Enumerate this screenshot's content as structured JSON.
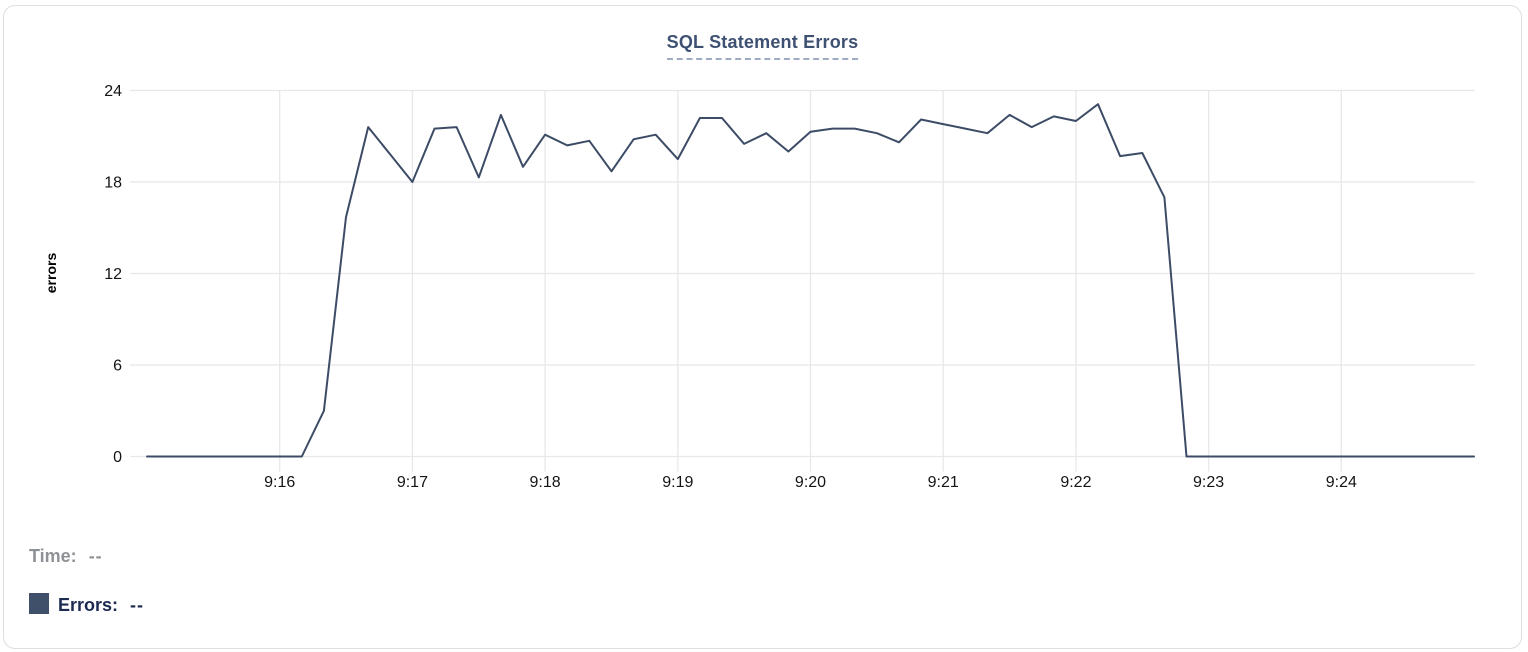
{
  "card": {
    "title": "SQL Statement Errors"
  },
  "chart_data": {
    "type": "line",
    "title": "SQL Statement Errors",
    "xlabel": "",
    "ylabel": "errors",
    "ylim": [
      0,
      24
    ],
    "y_ticks": [
      0,
      6,
      12,
      18,
      24
    ],
    "x_ticks": [
      "9:16",
      "9:17",
      "9:18",
      "9:19",
      "9:20",
      "9:21",
      "9:22",
      "9:23",
      "9:24"
    ],
    "x_start": "9:15:00",
    "x_end": "9:25:00",
    "interval_seconds": 10,
    "grid": true,
    "legend_position": "bottom-left",
    "series": [
      {
        "name": "Errors",
        "color": "#3d4c66",
        "points": [
          [
            "9:15:00",
            0
          ],
          [
            "9:15:10",
            0
          ],
          [
            "9:15:20",
            0
          ],
          [
            "9:15:30",
            0
          ],
          [
            "9:15:40",
            0
          ],
          [
            "9:15:50",
            0
          ],
          [
            "9:16:00",
            0
          ],
          [
            "9:16:10",
            0
          ],
          [
            "9:16:20",
            3
          ],
          [
            "9:16:30",
            15.7
          ],
          [
            "9:16:40",
            21.6
          ],
          [
            "9:16:50",
            19.8
          ],
          [
            "9:17:00",
            18
          ],
          [
            "9:17:10",
            21.5
          ],
          [
            "9:17:20",
            21.6
          ],
          [
            "9:17:30",
            18.3
          ],
          [
            "9:17:40",
            22.4
          ],
          [
            "9:17:50",
            19
          ],
          [
            "9:18:00",
            21.1
          ],
          [
            "9:18:10",
            20.4
          ],
          [
            "9:18:20",
            20.7
          ],
          [
            "9:18:30",
            18.7
          ],
          [
            "9:18:40",
            20.8
          ],
          [
            "9:18:50",
            21.1
          ],
          [
            "9:19:00",
            19.5
          ],
          [
            "9:19:10",
            22.2
          ],
          [
            "9:19:20",
            22.2
          ],
          [
            "9:19:30",
            20.5
          ],
          [
            "9:19:40",
            21.2
          ],
          [
            "9:19:50",
            20
          ],
          [
            "9:20:00",
            21.3
          ],
          [
            "9:20:10",
            21.5
          ],
          [
            "9:20:20",
            21.5
          ],
          [
            "9:20:30",
            21.2
          ],
          [
            "9:20:40",
            20.6
          ],
          [
            "9:20:50",
            22.1
          ],
          [
            "9:21:00",
            21.8
          ],
          [
            "9:21:10",
            21.5
          ],
          [
            "9:21:20",
            21.2
          ],
          [
            "9:21:30",
            22.4
          ],
          [
            "9:21:40",
            21.6
          ],
          [
            "9:21:50",
            22.3
          ],
          [
            "9:22:00",
            22
          ],
          [
            "9:22:10",
            23.1
          ],
          [
            "9:22:20",
            19.7
          ],
          [
            "9:22:30",
            19.9
          ],
          [
            "9:22:40",
            17
          ],
          [
            "9:22:50",
            0
          ],
          [
            "9:23:00",
            0
          ],
          [
            "9:23:10",
            0
          ],
          [
            "9:23:20",
            0
          ],
          [
            "9:23:30",
            0
          ],
          [
            "9:23:40",
            0
          ],
          [
            "9:23:50",
            0
          ],
          [
            "9:24:00",
            0
          ],
          [
            "9:24:10",
            0
          ],
          [
            "9:24:20",
            0
          ],
          [
            "9:24:30",
            0
          ],
          [
            "9:24:40",
            0
          ],
          [
            "9:24:50",
            0
          ],
          [
            "9:25:00",
            0
          ]
        ]
      }
    ]
  },
  "readout": {
    "time_label": "Time:",
    "time_value": "--",
    "errors_label": "Errors:",
    "errors_value": "--",
    "swatch_color": "#40506b"
  },
  "colors": {
    "line": "#3d4c66",
    "grid": "#e8e8ea",
    "axis_text": "#141414",
    "title": "#3e5173",
    "title_underline": "#9fabc4",
    "card_border": "#dcdfe3",
    "time_readout": "#8e9196",
    "errors_readout": "#1d2a52"
  }
}
